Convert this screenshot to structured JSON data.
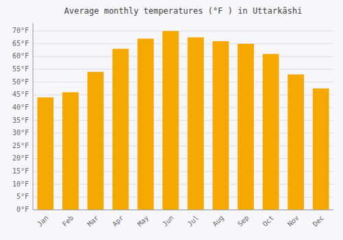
{
  "chart_data": {
    "type": "bar",
    "title": "Average monthly temperatures (°F ) in Uttarkāshi",
    "categories": [
      "Jan",
      "Feb",
      "Mar",
      "Apr",
      "May",
      "Jun",
      "Jul",
      "Aug",
      "Sep",
      "Oct",
      "Nov",
      "Dec"
    ],
    "values": [
      44,
      46,
      54,
      63,
      67,
      70,
      67.5,
      66,
      65,
      61,
      53,
      47.5
    ],
    "color": "#F5A800",
    "ylim": [
      0,
      73
    ],
    "yticks": [
      {
        "value": 0,
        "label": "0°F"
      },
      {
        "value": 5,
        "label": "5°F"
      },
      {
        "value": 10,
        "label": "10°F"
      },
      {
        "value": 15,
        "label": "15°F"
      },
      {
        "value": 20,
        "label": "20°F"
      },
      {
        "value": 25,
        "label": "25°F"
      },
      {
        "value": 30,
        "label": "30°F"
      },
      {
        "value": 35,
        "label": "35°F"
      },
      {
        "value": 40,
        "label": "40°F"
      },
      {
        "value": 45,
        "label": "45°F"
      },
      {
        "value": 50,
        "label": "50°F"
      },
      {
        "value": 55,
        "label": "55°F"
      },
      {
        "value": 60,
        "label": "60°F"
      },
      {
        "value": 65,
        "label": "65°F"
      },
      {
        "value": 70,
        "label": "70°F"
      }
    ],
    "grid": true
  }
}
